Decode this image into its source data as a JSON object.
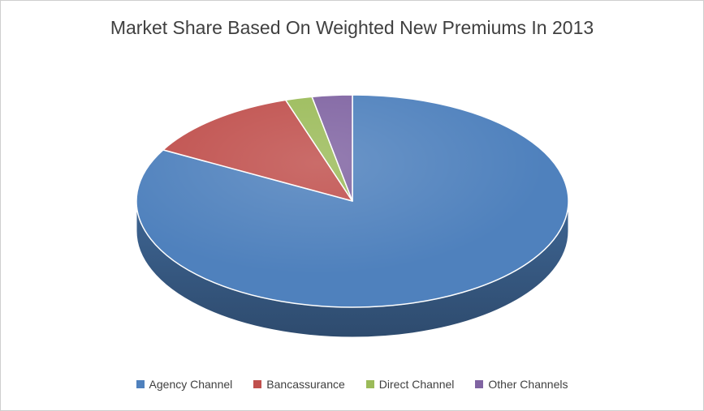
{
  "chart_data": {
    "type": "pie",
    "title": "Market Share Based On Weighted New Premiums In 2013",
    "categories": [
      "Agency Channel",
      "Bancassurance",
      "Direct Channel",
      "Other Channels"
    ],
    "values": [
      83,
      12,
      2,
      3
    ],
    "colors": [
      "#4F81BD",
      "#C0504D",
      "#9BBB59",
      "#8064A2"
    ],
    "legend_position": "bottom",
    "start_angle_deg": 0,
    "direction": "clockwise",
    "effect": "3d",
    "units": "percent"
  },
  "frame": {
    "background": "#FFFFFF",
    "border_color": "#CFCFCF",
    "title_color": "#404040",
    "legend_text_color": "#404040"
  }
}
